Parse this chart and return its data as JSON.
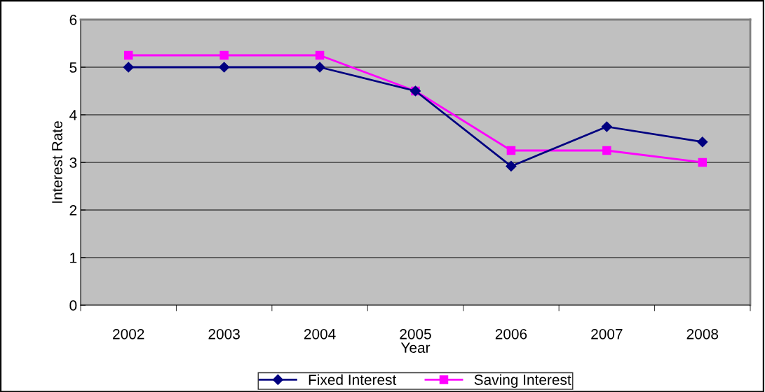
{
  "chart_data": {
    "type": "line",
    "xlabel": "Year",
    "ylabel": "Interest Rate",
    "categories": [
      "2002",
      "2003",
      "2004",
      "2005",
      "2006",
      "2007",
      "2008"
    ],
    "series": [
      {
        "name": "Fixed Interest",
        "color": "#000080",
        "marker": "diamond",
        "values": [
          5,
          5,
          5,
          4.5,
          2.92,
          3.75,
          3.43
        ]
      },
      {
        "name": "Saving Interest",
        "color": "#ff00ff",
        "marker": "square",
        "values": [
          5.25,
          5.25,
          5.25,
          4.5,
          3.25,
          3.25,
          3.0
        ]
      }
    ],
    "ylim": [
      0,
      6
    ],
    "yticks": [
      0,
      1,
      2,
      3,
      4,
      5,
      6
    ],
    "grid": "y",
    "legend": "bottom",
    "line_style": "solid"
  }
}
